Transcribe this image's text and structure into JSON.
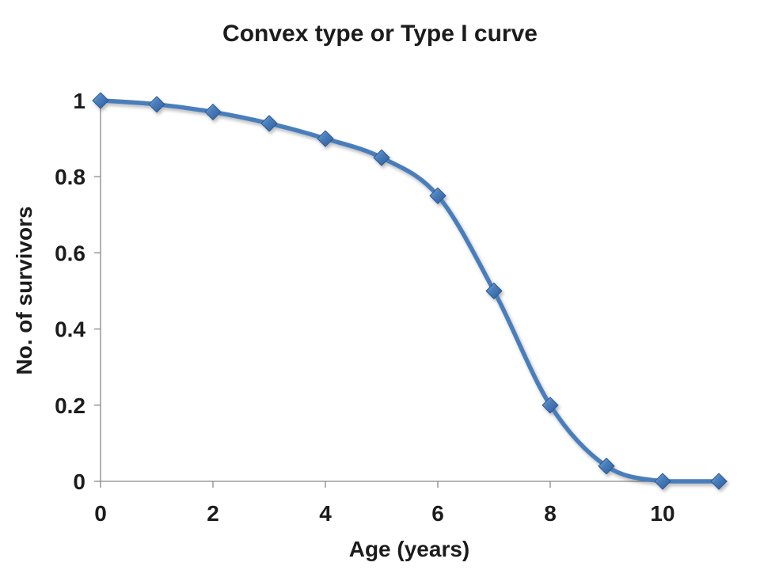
{
  "page": {
    "background": "#ffffff"
  },
  "chart_data": {
    "type": "line",
    "title": "Convex type or Type I curve",
    "xlabel": "Age (years)",
    "ylabel": "No. of survivors",
    "series": [
      {
        "name": "No. of survivors",
        "x": [
          0,
          1,
          2,
          3,
          4,
          5,
          6,
          7,
          8,
          9,
          10,
          11
        ],
        "y": [
          1.0,
          0.99,
          0.97,
          0.94,
          0.9,
          0.85,
          0.75,
          0.5,
          0.2,
          0.04,
          0.0,
          0.0
        ]
      }
    ],
    "xticks": {
      "values": [
        0,
        2,
        4,
        6,
        8,
        10
      ],
      "labels": [
        "0",
        "2",
        "4",
        "6",
        "8",
        "10"
      ]
    },
    "yticks": {
      "values": [
        0,
        0.2,
        0.4,
        0.6,
        0.8,
        1
      ],
      "labels": [
        "0",
        "0.2",
        "0.4",
        "0.6",
        "0.8",
        "1"
      ]
    },
    "xlim": [
      0,
      11.15
    ],
    "ylim": [
      0,
      1
    ],
    "grid": false,
    "legend_position": "none",
    "smooth_line": true,
    "marker_shape": "diamond",
    "colors": {
      "line": "#4a7ebb",
      "marker_light": "#8cb4e2",
      "marker_mid": "#4a7ebc",
      "marker_dark": "#2e5c9e",
      "marker_border": "#2b5992",
      "axis": "#898989",
      "text": "#1c1c1c"
    }
  }
}
